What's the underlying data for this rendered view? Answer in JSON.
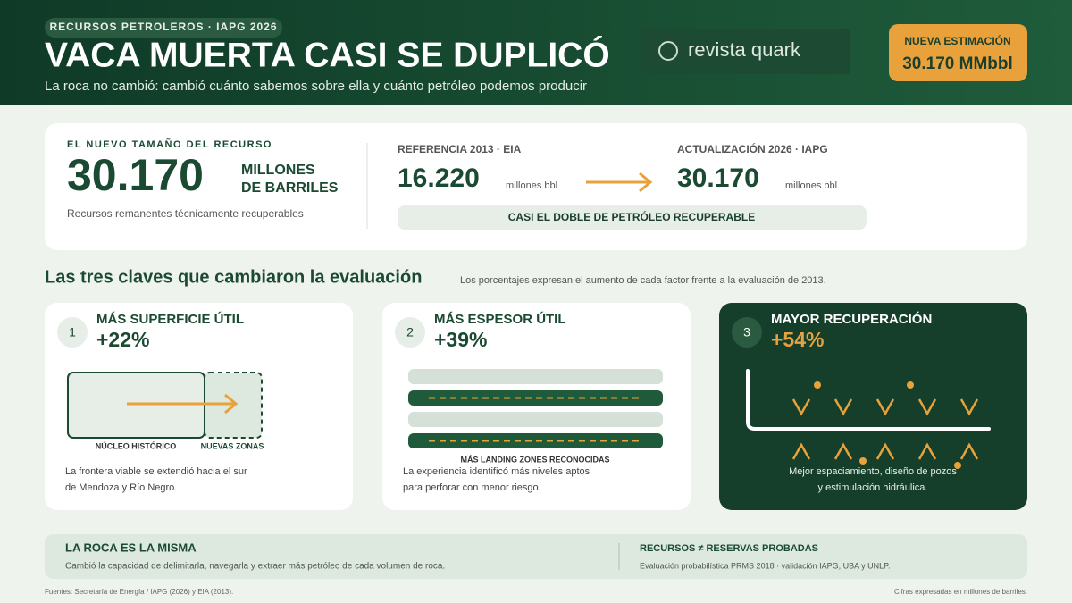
{
  "header": {
    "tag": "RECURSOS PETROLEROS · IAPG 2026",
    "title": "VACA MUERTA CASI SE DUPLICÓ",
    "subtitle": "La roca no cambió: cambió cuánto sabemos sobre ella y cuánto petróleo podemos producir",
    "logo": "revista quark",
    "badge": {
      "label": "NUEVA ESTIMACIÓN",
      "value": "30.170 MMbbl"
    }
  },
  "summary": {
    "label": "EL NUEVO TAMAÑO DEL RECURSO",
    "value": "30.170",
    "unit_lines": [
      "MILLONES",
      "DE BARRILES"
    ],
    "note": "Recursos remanentes técnicamente recuperables",
    "reference": {
      "label": "REFERENCIA 2013 · EIA",
      "value": "16.220",
      "unit": "millones bbl"
    },
    "update": {
      "label": "ACTUALIZACIÓN 2026 · IAPG",
      "value": "30.170",
      "unit": "millones bbl"
    },
    "conclusion": "CASI EL DOBLE DE PETRÓLEO RECUPERABLE"
  },
  "section": {
    "title": "Las tres claves que cambiaron la evaluación",
    "note": "Los porcentajes expresan el aumento de cada factor frente a la evaluación de 2013."
  },
  "keys": [
    {
      "number": "1",
      "title": "MÁS SUPERFICIE ÚTIL",
      "change": "+22%",
      "labels": [
        "NÚCLEO HISTÓRICO",
        "NUEVAS ZONAS"
      ],
      "text": [
        "La frontera viable se extendió hacia el sur",
        "de Mendoza y Río Negro."
      ]
    },
    {
      "number": "2",
      "title": "MÁS ESPESOR ÚTIL",
      "change": "+39%",
      "labels": [
        "MÁS LANDING ZONES RECONOCIDAS"
      ],
      "text": [
        "La experiencia identificó más niveles aptos",
        "para perforar con menor riesgo."
      ]
    },
    {
      "number": "3",
      "title": "MAYOR RECUPERACIÓN",
      "change": "+54%",
      "text": [
        "Mejor espaciamiento, diseño de pozos",
        "y estimulación hidráulica."
      ]
    }
  ],
  "facts": [
    {
      "title": "LA ROCA ES LA MISMA",
      "text": "Cambió la capacidad de delimitarla, navegarla y extraer más petróleo de cada volumen de roca."
    },
    {
      "title": "RECURSOS ≠ RESERVAS PROBADAS",
      "text": "Evaluación probabilística PRMS 2018 · validación IAPG, UBA y UNLP."
    }
  ],
  "footer": {
    "sources": "Fuentes: Secretaría de Energía / IAPG (2026) y EIA (2013).",
    "units": "Cifras expresadas en millones de barriles."
  }
}
